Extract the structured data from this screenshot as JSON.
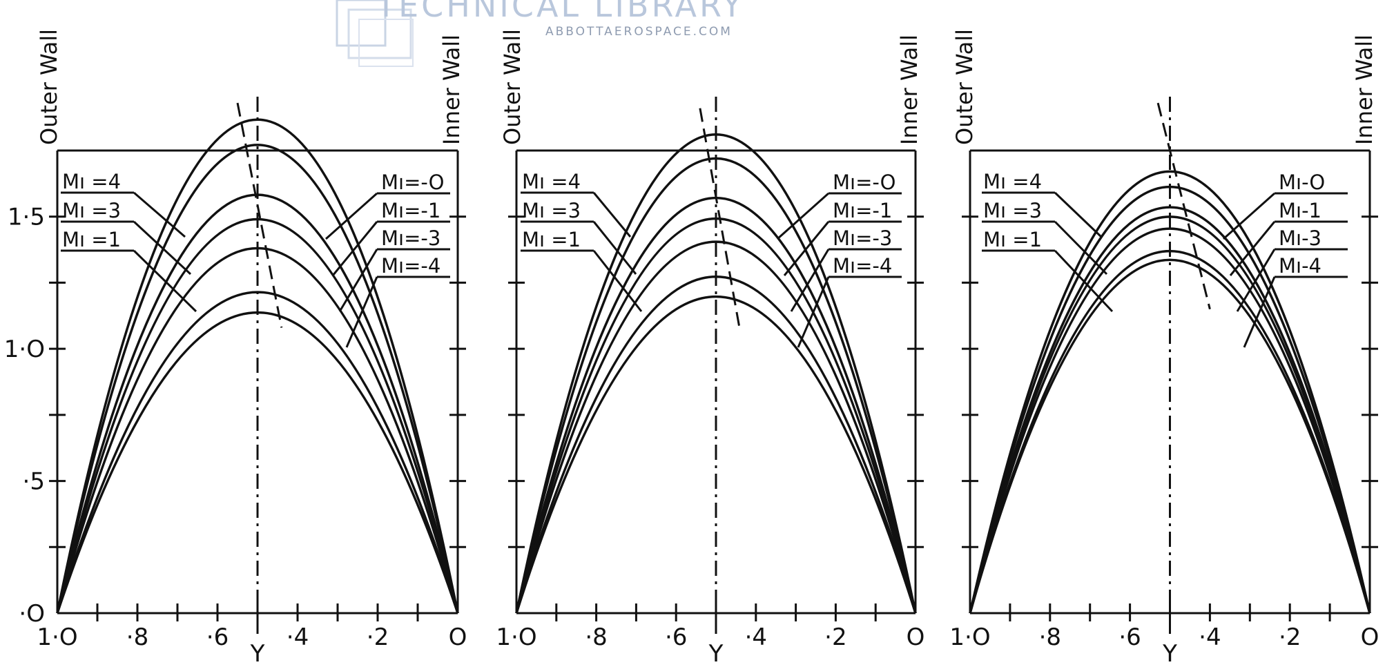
{
  "watermark": {
    "title": "TECHNICAL LIBRARY",
    "subtitle": "ABBOTTAEROSPACE.COM"
  },
  "chart_data": [
    {
      "type": "line",
      "xlabel": "Y",
      "ylabel": "",
      "xlim": [
        1.0,
        0.0
      ],
      "ylim": [
        0,
        1.75
      ],
      "x_ticks": [
        "1·O",
        "·8",
        "·6",
        "·4",
        "·2",
        "O"
      ],
      "y_ticks": [
        "·O",
        "·5",
        "1·O",
        "1·5"
      ],
      "wall_labels": {
        "outer": "Outer Wall",
        "inner": "Inner Wall"
      },
      "centerline_x": 0.5,
      "peak_locus": {
        "x_top": 0.55,
        "y_top": 1.93,
        "x_bottom": 0.44,
        "y_bottom": 1.08
      },
      "legend_left": [
        "Mı =4",
        "Mı =3",
        "Mı =1"
      ],
      "legend_right": [
        "Mı=-O",
        "Mı=-1",
        "Mı=-3",
        "Mı=-4"
      ],
      "series": [
        {
          "name": "Mı =4",
          "peak_x": 0.56,
          "peak_y": 1.84
        },
        {
          "name": "Mı =3",
          "peak_x": 0.54,
          "peak_y": 1.76
        },
        {
          "name": "Mı =1",
          "peak_x": 0.52,
          "peak_y": 1.58
        },
        {
          "name": "Mı=-O",
          "peak_x": 0.5,
          "peak_y": 1.49
        },
        {
          "name": "Mı=-1",
          "peak_x": 0.49,
          "peak_y": 1.38
        },
        {
          "name": "Mı=-3",
          "peak_x": 0.47,
          "peak_y": 1.21
        },
        {
          "name": "Mı=-4",
          "peak_x": 0.46,
          "peak_y": 1.13
        }
      ]
    },
    {
      "type": "line",
      "xlabel": "Y",
      "ylabel": "",
      "xlim": [
        1.0,
        0.0
      ],
      "ylim": [
        0,
        1.75
      ],
      "x_ticks": [
        "1·O",
        "·8",
        "·6",
        "·4",
        "·2",
        "O"
      ],
      "y_ticks": [],
      "wall_labels": {
        "outer": "Outer Wall",
        "inner": "Inner Wall"
      },
      "centerline_x": 0.5,
      "peak_locus": {
        "x_top": 0.54,
        "y_top": 1.91,
        "x_bottom": 0.44,
        "y_bottom": 1.07
      },
      "legend_left": [
        "Mı =4",
        "Mı =3",
        "Mı =1"
      ],
      "legend_right": [
        "Mı=-O",
        "Mı=-1",
        "Mı=-3",
        "Mı=-4"
      ],
      "series": [
        {
          "name": "Mı =4",
          "peak_x": 0.51,
          "peak_y": 1.81
        },
        {
          "name": "Mı =3",
          "peak_x": 0.5,
          "peak_y": 1.72
        },
        {
          "name": "Mı =1",
          "peak_x": 0.49,
          "peak_y": 1.57
        },
        {
          "name": "Mı=-O",
          "peak_x": 0.48,
          "peak_y": 1.49
        },
        {
          "name": "Mı=-1",
          "peak_x": 0.47,
          "peak_y": 1.4
        },
        {
          "name": "Mı=-3",
          "peak_x": 0.45,
          "peak_y": 1.26
        },
        {
          "name": "Mı=-4",
          "peak_x": 0.44,
          "peak_y": 1.18
        }
      ]
    },
    {
      "type": "line",
      "xlabel": "Y",
      "ylabel": "",
      "xlim": [
        1.0,
        0.0
      ],
      "ylim": [
        0,
        1.75
      ],
      "x_ticks": [
        "1·O",
        "·8",
        "·6",
        "·4",
        "·2",
        "O"
      ],
      "y_ticks": [],
      "wall_labels": {
        "outer": "Outer Wall",
        "inner": "Inner Wall"
      },
      "centerline_x": 0.5,
      "peak_locus": {
        "x_top": 0.53,
        "y_top": 1.93,
        "x_bottom": 0.4,
        "y_bottom": 1.15
      },
      "legend_left": [
        "Mı =4",
        "Mı =3",
        "Mı =1"
      ],
      "legend_right": [
        "Mı-O",
        "Mı-1",
        "Mı-3",
        "Mı-4"
      ],
      "series": [
        {
          "name": "Mı =4",
          "peak_x": 0.49,
          "peak_y": 1.67
        },
        {
          "name": "Mı =3",
          "peak_x": 0.48,
          "peak_y": 1.61
        },
        {
          "name": "Mı =1",
          "peak_x": 0.47,
          "peak_y": 1.53
        },
        {
          "name": "Mı-O",
          "peak_x": 0.46,
          "peak_y": 1.49
        },
        {
          "name": "Mı-1",
          "peak_x": 0.45,
          "peak_y": 1.44
        },
        {
          "name": "Mı-3",
          "peak_x": 0.44,
          "peak_y": 1.35
        },
        {
          "name": "Mı-4",
          "peak_x": 0.43,
          "peak_y": 1.31
        }
      ]
    }
  ]
}
